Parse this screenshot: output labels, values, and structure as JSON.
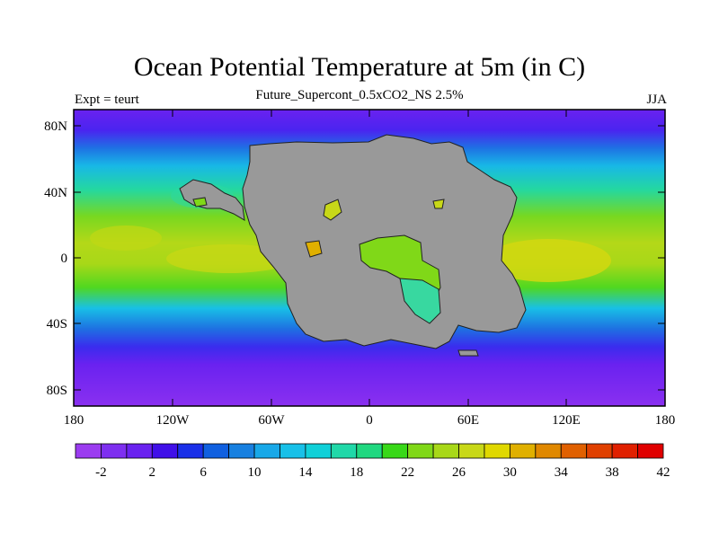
{
  "map": {
    "title": "Ocean Potential Temperature at 5m (in C)",
    "subtitle": "Future_Supercont_0.5xCO2_NS 2.5%",
    "left_string": "Expt = teurt",
    "right_string": "JJA",
    "projection": "cylindrical equidistant",
    "lon_range": [
      -180,
      180
    ],
    "lat_range": [
      -90,
      90
    ],
    "land_color": "#999999",
    "lat_ticks": [
      "80N",
      "40N",
      "0",
      "40S",
      "80S"
    ],
    "lon_ticks": [
      "180",
      "120W",
      "60W",
      "0",
      "60E",
      "120E",
      "180"
    ]
  },
  "colorbar": {
    "labels": [
      "-2",
      "2",
      "6",
      "10",
      "14",
      "18",
      "22",
      "26",
      "30",
      "34",
      "38",
      "42"
    ],
    "colors": [
      "#9b3cf0",
      "#7e2ff0",
      "#6a22f0",
      "#4010e8",
      "#1a30e8",
      "#1060e0",
      "#1880e0",
      "#18a8e8",
      "#18c0e8",
      "#10d0d8",
      "#20d8a8",
      "#20d880",
      "#38d818",
      "#80d818",
      "#a8d818",
      "#c8d818",
      "#e0d800",
      "#e0b000",
      "#e08800",
      "#e06000",
      "#e04000",
      "#e02000",
      "#e00000"
    ]
  }
}
